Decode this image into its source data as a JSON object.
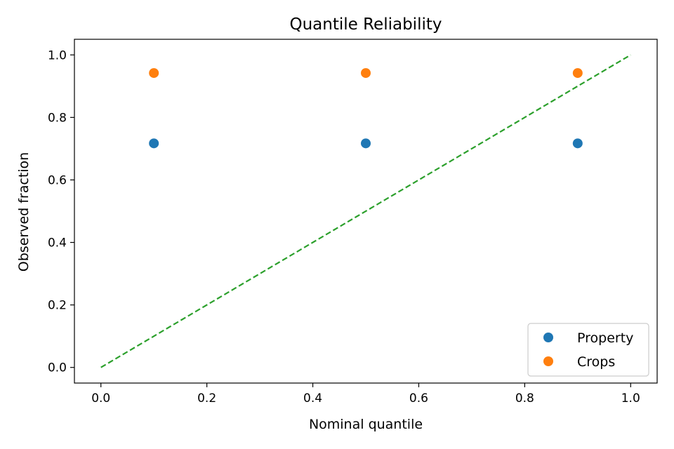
{
  "chart_data": {
    "type": "scatter",
    "title": "Quantile Reliability",
    "xlabel": "Nominal quantile",
    "ylabel": "Observed fraction",
    "xlim": [
      -0.05,
      1.05
    ],
    "ylim": [
      -0.05,
      1.05
    ],
    "xticks": [
      0.0,
      0.2,
      0.4,
      0.6,
      0.8,
      1.0
    ],
    "xtick_labels": [
      "0.0",
      "0.2",
      "0.4",
      "0.6",
      "0.8",
      "1.0"
    ],
    "yticks": [
      0.0,
      0.2,
      0.4,
      0.6,
      0.8,
      1.0
    ],
    "ytick_labels": [
      "0.0",
      "0.2",
      "0.4",
      "0.6",
      "0.8",
      "1.0"
    ],
    "grid": false,
    "legend_position": "lower-right",
    "series": [
      {
        "name": "Property",
        "color": "#1f77b4",
        "x": [
          0.1,
          0.5,
          0.9
        ],
        "y": [
          0.717,
          0.717,
          0.717
        ]
      },
      {
        "name": "Crops",
        "color": "#ff7f0e",
        "x": [
          0.1,
          0.5,
          0.9
        ],
        "y": [
          0.942,
          0.942,
          0.942
        ]
      }
    ],
    "reference_line": {
      "style": "dashed",
      "color": "#2ca02c",
      "x": [
        0.0,
        1.0
      ],
      "y": [
        0.0,
        1.0
      ]
    }
  }
}
